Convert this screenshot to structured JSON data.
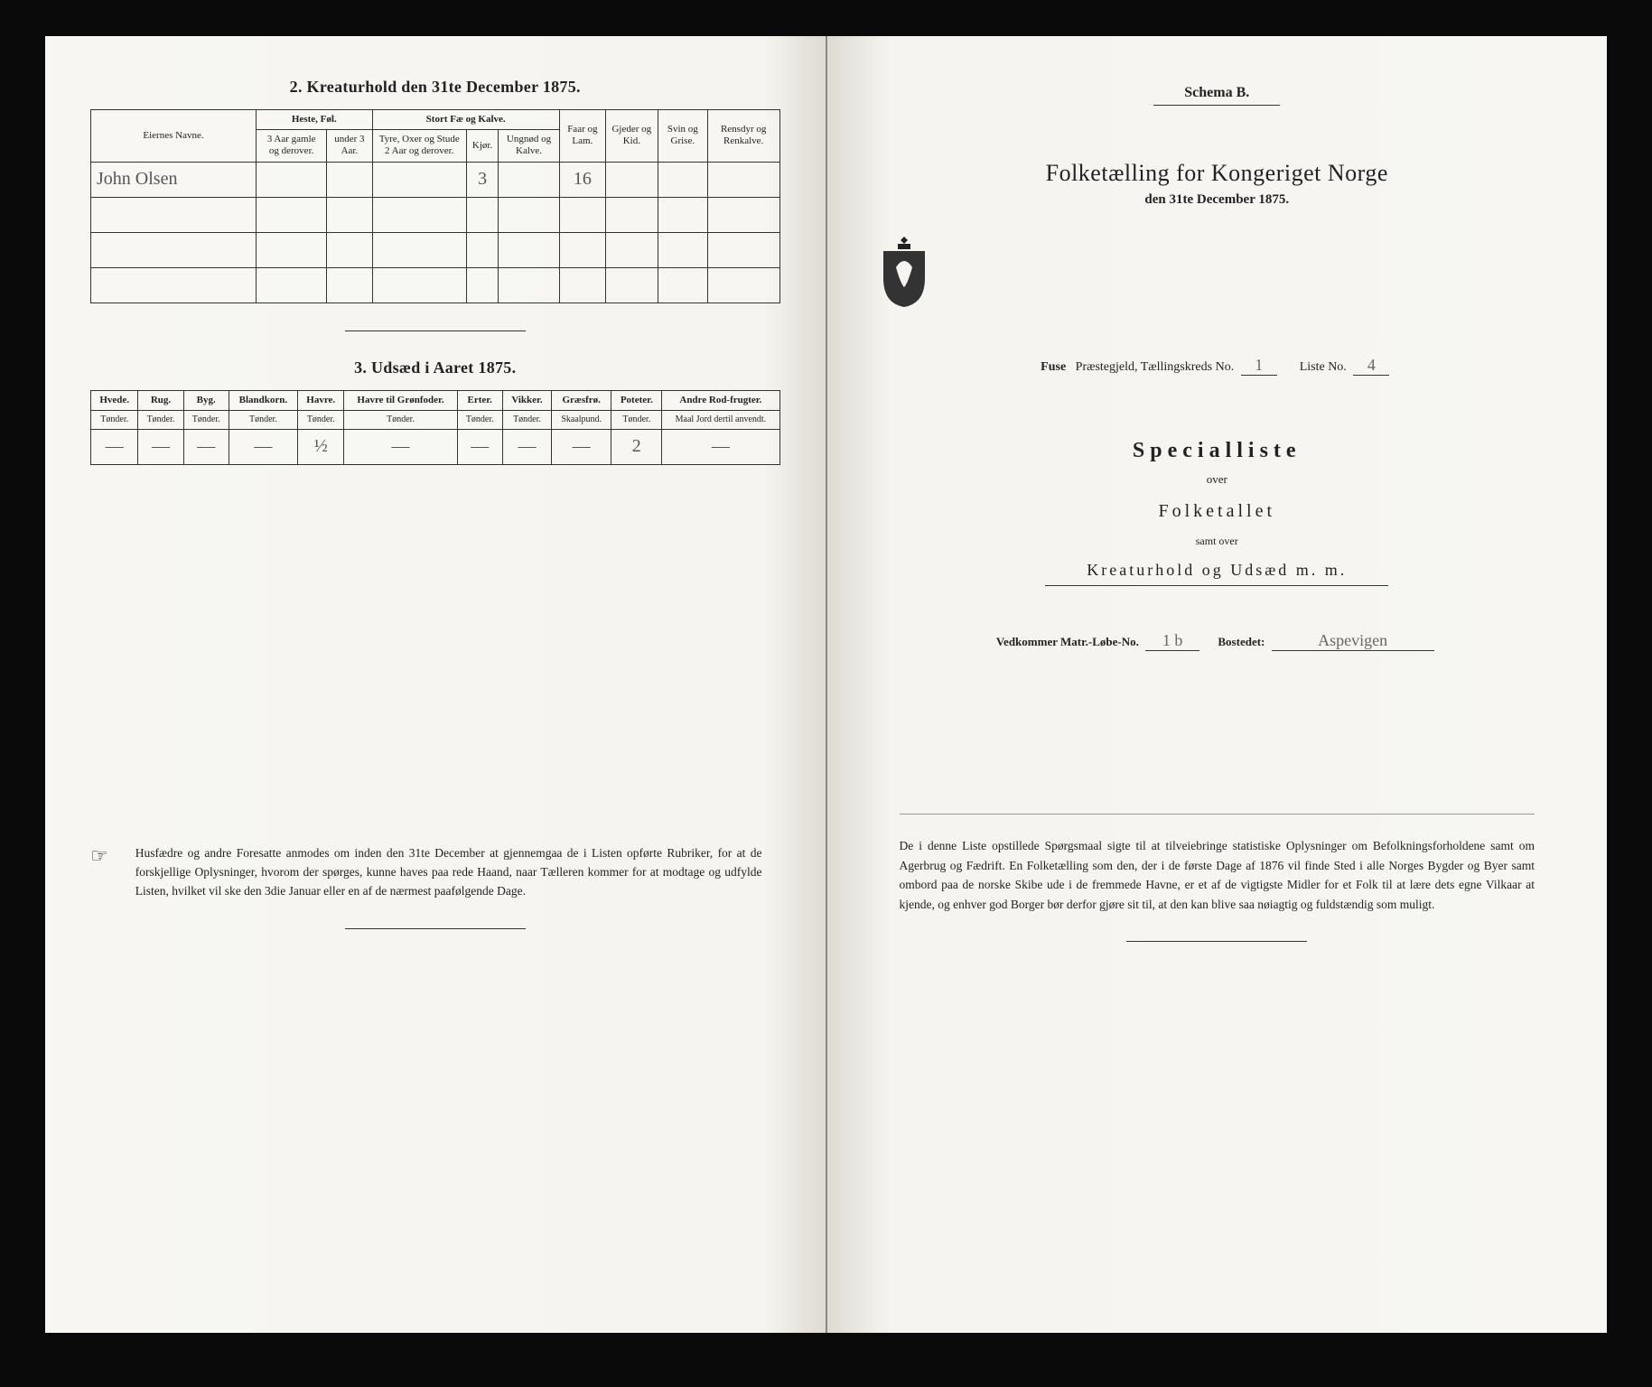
{
  "left": {
    "section2": {
      "title": "2.  Kreaturhold den 31te December 1875.",
      "cols": {
        "eier": "Eiernes Navne.",
        "heste_group": "Heste, Føl.",
        "heste_a": "3 Aar gamle og derover.",
        "heste_b": "under 3 Aar.",
        "stort_group": "Stort Fæ og Kalve.",
        "stort_a": "Tyre, Oxer og Stude 2 Aar og derover.",
        "stort_b": "Kjør.",
        "stort_c": "Ungnød og Kalve.",
        "faar": "Faar og Lam.",
        "gjeder": "Gjeder og Kid.",
        "svin": "Svin og Grise.",
        "ren": "Rensdyr og Renkalve."
      },
      "rows": [
        {
          "eier": "John Olsen",
          "heste_a": "",
          "heste_b": "",
          "stort_a": "",
          "stort_b": "3",
          "stort_c": "",
          "faar": "16",
          "gjeder": "",
          "svin": "",
          "ren": ""
        },
        {
          "eier": "",
          "heste_a": "",
          "heste_b": "",
          "stort_a": "",
          "stort_b": "",
          "stort_c": "",
          "faar": "",
          "gjeder": "",
          "svin": "",
          "ren": ""
        },
        {
          "eier": "",
          "heste_a": "",
          "heste_b": "",
          "stort_a": "",
          "stort_b": "",
          "stort_c": "",
          "faar": "",
          "gjeder": "",
          "svin": "",
          "ren": ""
        },
        {
          "eier": "",
          "heste_a": "",
          "heste_b": "",
          "stort_a": "",
          "stort_b": "",
          "stort_c": "",
          "faar": "",
          "gjeder": "",
          "svin": "",
          "ren": ""
        }
      ]
    },
    "section3": {
      "title": "3.  Udsæd i Aaret 1875.",
      "headers": [
        "Hvede.",
        "Rug.",
        "Byg.",
        "Blandkorn.",
        "Havre.",
        "Havre til Grønfoder.",
        "Erter.",
        "Vikker.",
        "Græsfrø.",
        "Poteter.",
        "Andre Rod-frugter."
      ],
      "units": [
        "Tønder.",
        "Tønder.",
        "Tønder.",
        "Tønder.",
        "Tønder.",
        "Tønder.",
        "Tønder.",
        "Tønder.",
        "Skaalpund.",
        "Tønder.",
        "Maal Jord dertil anvendt."
      ],
      "values": [
        "—",
        "—",
        "—",
        "—",
        "½",
        "—",
        "—",
        "—",
        "—",
        "2",
        "—"
      ]
    },
    "footnote": "Husfædre og andre Foresatte anmodes om inden den 31te December at gjennemgaa de i Listen opførte Rubriker, for at de forskjellige Oplysninger, hvorom der spørges, kunne haves paa rede Haand, naar Tælleren kommer for at modtage og udfylde Listen, hvilket vil ske den 3die Januar eller en af de nærmest paafølgende Dage."
  },
  "right": {
    "schema": "Schema B.",
    "title": "Folketælling for Kongeriget Norge",
    "subtitle": "den 31te December 1875.",
    "meta": {
      "prestegjeld_lbl": "Fuse",
      "praeste": "Præstegjeld, Tællingskreds No.",
      "kreds_no": "1",
      "liste_lbl": "Liste No.",
      "liste_no": "4"
    },
    "special": "Specialliste",
    "over": "over",
    "folketallet": "Folketallet",
    "samt": "samt over",
    "kreatur": "Kreaturhold og Udsæd m. m.",
    "vedk": {
      "lbl1": "Vedkommer Matr.-Løbe-No.",
      "mno": "1 b",
      "lbl2": "Bostedet:",
      "bosted": "Aspevigen"
    },
    "footnote": "De i denne Liste opstillede Spørgsmaal sigte til at tilveiebringe statistiske Oplysninger om Befolkningsforholdene samt om Agerbrug og Fædrift.  En Folketælling som den, der i de første Dage af 1876 vil finde Sted i alle Norges Bygder og Byer samt ombord paa de norske Skibe ude i de fremmede Havne, er et af de vigtigste Midler for et Folk til at lære dets egne Vilkaar at kjende, og enhver god Borger bør derfor gjøre sit til, at den kan blive saa nøiagtig og fuldstændig som muligt."
  }
}
